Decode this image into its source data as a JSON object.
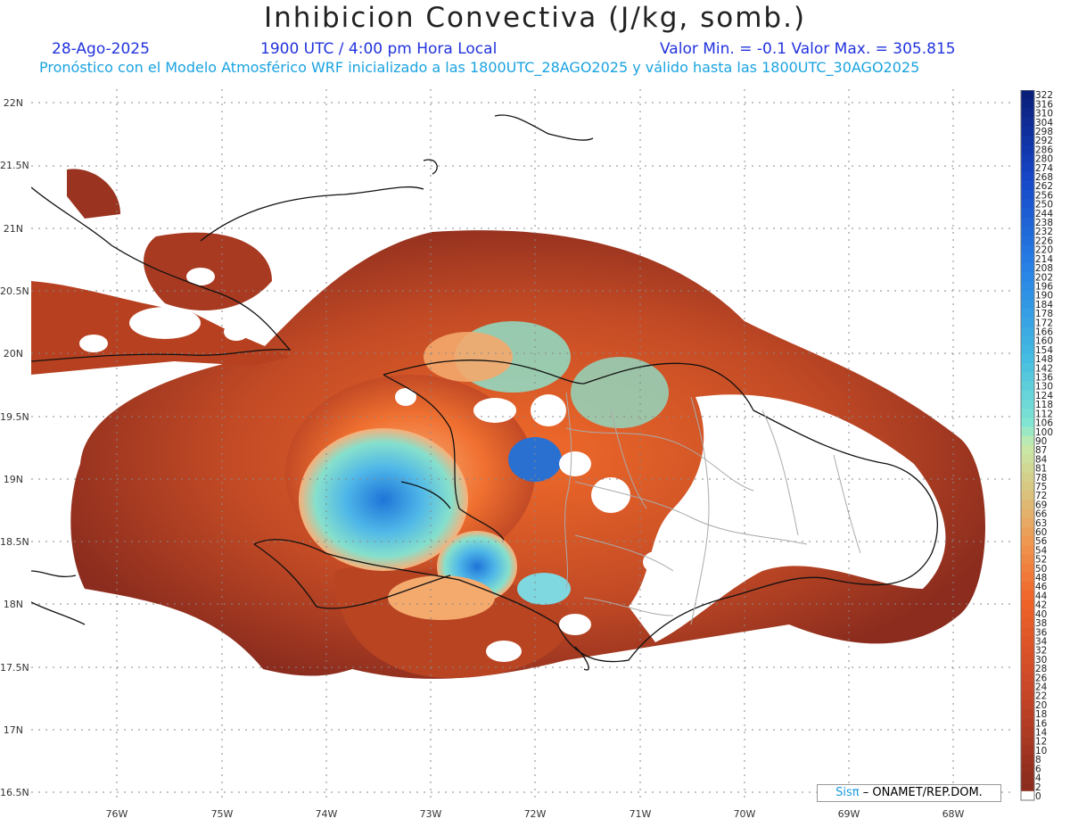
{
  "header": {
    "title": "Inhibicion Convectiva (J/kg, somb.)",
    "date": "28-Ago-2025",
    "time": "1900 UTC / 4:00 pm Hora Local",
    "minmax": "Valor Min. = -0.1  Valor Max. = 305.815",
    "subtitle": "Pronóstico con el Modelo Atmosférico WRF inicializado a las 1800UTC_28AGO2025 y válido hasta las  1800UTC_30AGO2025"
  },
  "lat_labels": [
    "22N",
    "21.5N",
    "21N",
    "20.5N",
    "20N",
    "19.5N",
    "19N",
    "18.5N",
    "18N",
    "17.5N",
    "17N",
    "16.5N"
  ],
  "lon_labels": [
    "76W",
    "75W",
    "74W",
    "73W",
    "72W",
    "71W",
    "70W",
    "69W",
    "68W"
  ],
  "colorbar": {
    "labels": [
      "322",
      "316",
      "310",
      "304",
      "298",
      "292",
      "286",
      "280",
      "274",
      "268",
      "262",
      "256",
      "250",
      "244",
      "238",
      "232",
      "226",
      "220",
      "214",
      "208",
      "202",
      "196",
      "190",
      "184",
      "178",
      "172",
      "166",
      "160",
      "154",
      "148",
      "142",
      "136",
      "130",
      "124",
      "118",
      "112",
      "106",
      "100",
      "90",
      "87",
      "84",
      "81",
      "78",
      "75",
      "72",
      "69",
      "66",
      "63",
      "60",
      "56",
      "54",
      "52",
      "50",
      "48",
      "46",
      "44",
      "42",
      "40",
      "38",
      "36",
      "34",
      "32",
      "30",
      "28",
      "26",
      "24",
      "22",
      "20",
      "18",
      "16",
      "14",
      "12",
      "10",
      "8",
      "6",
      "4",
      "2",
      "0"
    ]
  },
  "credit": {
    "logo": "Sisπ",
    "text": "– ONAMET/REP.DOM."
  },
  "colors": {
    "high": "#0a1f7a",
    "mid": "#7fe3d0",
    "low": "#8b2c1e",
    "zero": "#ffffff"
  }
}
